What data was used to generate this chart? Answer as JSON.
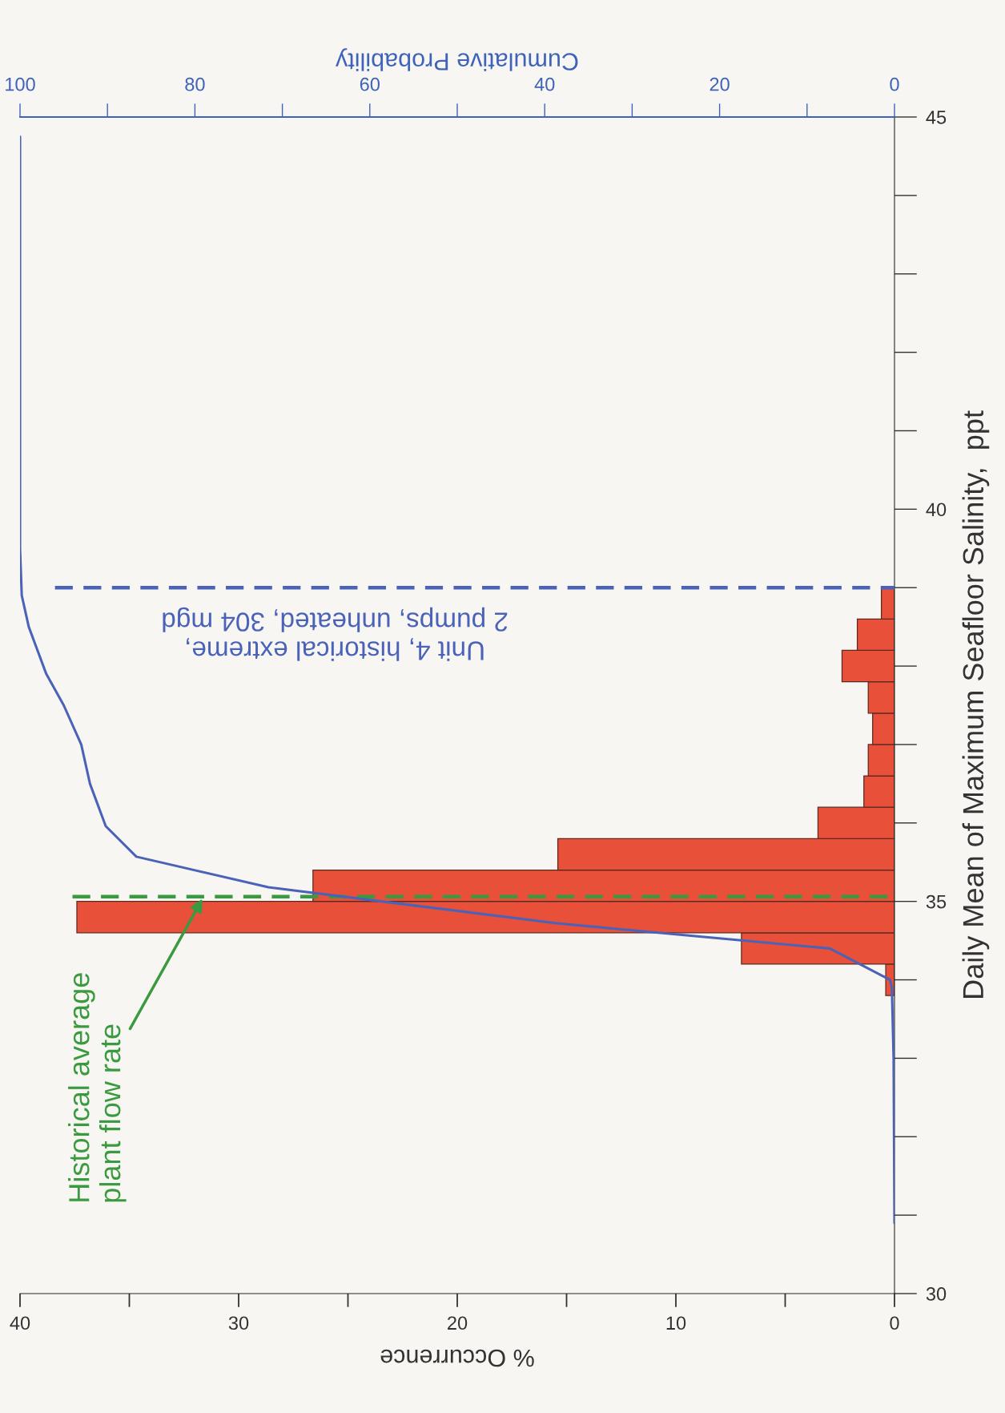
{
  "chart_data": {
    "type": "histogram",
    "orientation": "horizontal",
    "xlabel": "% Occurrence",
    "x2label": "Cumulative Probability",
    "ylabel": "Daily Mean of Maximum Seafloor Salinity,  ppt",
    "bins": [
      33.8,
      34.2,
      34.6,
      35.0,
      35.4,
      35.8,
      36.2,
      36.6,
      37.0,
      37.4,
      37.8,
      38.2,
      38.6,
      39.0
    ],
    "series": [
      {
        "type": "histogram",
        "color": "#e8503a",
        "values": [
          0.4,
          7.0,
          37.4,
          26.6,
          15.4,
          3.5,
          1.4,
          1.2,
          1.0,
          1.2,
          2.4,
          1.7,
          0.6
        ]
      },
      {
        "type": "line",
        "axis": "x2",
        "color": "#4a62b8",
        "x": [
          30.9,
          33.0,
          33.9,
          34.0,
          34.4,
          34.72,
          35.18,
          35.57,
          35.96,
          36.5,
          37.0,
          37.5,
          37.9,
          38.2,
          38.5,
          38.9,
          39.5,
          44.75
        ],
        "values": [
          0,
          0.1,
          0.3,
          0.5,
          7.4,
          38.6,
          71.6,
          86.7,
          90.2,
          92,
          93,
          95,
          97,
          98,
          99,
          99.8,
          100,
          100
        ]
      }
    ],
    "xlim": [
      40,
      0
    ],
    "xticks": [
      0,
      10,
      20,
      30,
      40
    ],
    "x2lim": [
      100,
      0
    ],
    "x2ticks": [
      0,
      20,
      40,
      60,
      80,
      100
    ],
    "ylim": [
      30,
      45
    ],
    "yticks": [
      30,
      35,
      40,
      45
    ],
    "ref_lines": [
      {
        "axis": "y",
        "value": 35.06,
        "label": "Historical average\nplant flow rate",
        "color": "#3a9a3f",
        "line_style": "dashed"
      },
      {
        "axis": "y",
        "value": 39.0,
        "label": "Unit 4, historical extreme,\n2 pumps, unheated, 304 mgd",
        "color": "#4a62b8",
        "line_style": "dashed"
      }
    ],
    "grid": false,
    "legend": false
  }
}
